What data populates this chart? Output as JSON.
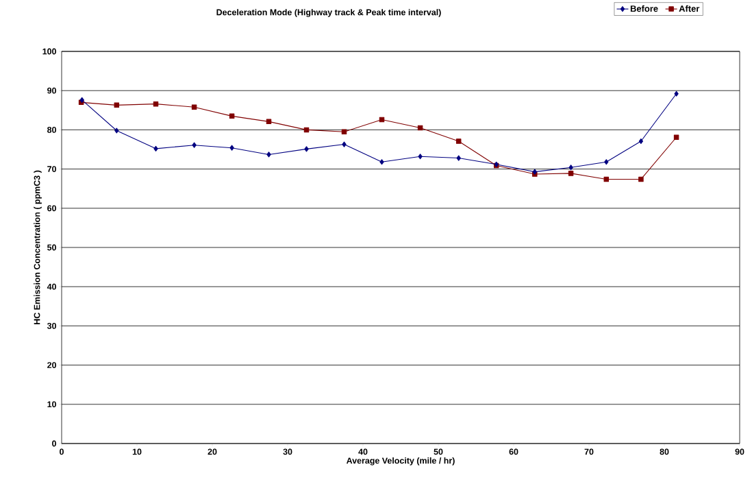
{
  "chart_data": {
    "type": "line",
    "title": "Deceleration Mode (Highway track & Peak time interval)",
    "xlabel": "Average Velocity (mile / hr)",
    "ylabel": "HC Emission Concentration ( ppmC3 )",
    "xlim": [
      0,
      90
    ],
    "xticks": [
      0,
      10,
      20,
      30,
      40,
      50,
      60,
      70,
      80,
      90
    ],
    "ylim": [
      0,
      100
    ],
    "yticks": [
      0,
      10,
      20,
      30,
      40,
      50,
      60,
      70,
      80,
      90,
      100
    ],
    "grid": "y",
    "legend": "top right",
    "series": [
      {
        "name": "Before",
        "color": "#000080",
        "marker": "diamond",
        "x": [
          2.7,
          7.3,
          12.5,
          17.6,
          22.6,
          27.5,
          32.5,
          37.5,
          42.5,
          47.6,
          52.7,
          57.7,
          62.8,
          67.6,
          72.3,
          76.9,
          81.6
        ],
        "values": [
          87.6,
          79.8,
          75.2,
          76.1,
          75.4,
          73.7,
          75.1,
          76.3,
          71.8,
          73.2,
          72.8,
          71.2,
          69.3,
          70.4,
          71.8,
          77.1,
          89.2
        ]
      },
      {
        "name": "After",
        "color": "#800000",
        "marker": "square",
        "x": [
          2.6,
          7.3,
          12.5,
          17.6,
          22.6,
          27.5,
          32.5,
          37.5,
          42.5,
          47.6,
          52.7,
          57.7,
          62.8,
          67.6,
          72.3,
          76.9,
          81.6
        ],
        "values": [
          87.0,
          86.3,
          86.6,
          85.8,
          83.5,
          82.1,
          80.0,
          79.5,
          82.6,
          80.5,
          77.1,
          70.9,
          68.7,
          68.9,
          67.4,
          67.4,
          78.1
        ]
      }
    ]
  }
}
